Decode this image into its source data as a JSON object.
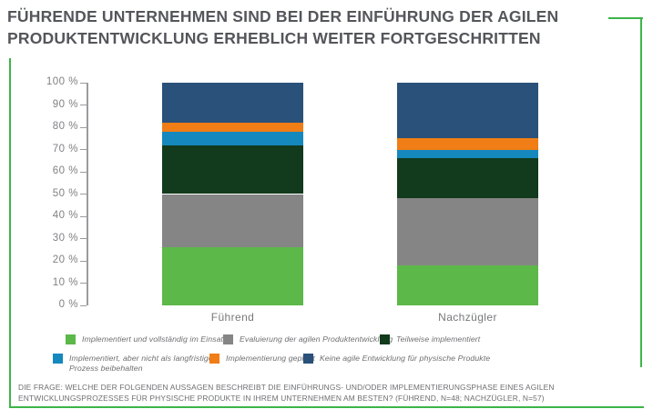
{
  "title": {
    "lines": [
      "FÜHRENDE UNTERNEHMEN SIND BEI DER EINFÜHRUNG DER AGILEN",
      "PRODUKTENTWICKLUNG ERHEBLICH WEITER FORTGESCHRITTEN"
    ]
  },
  "chart_data": {
    "type": "bar",
    "variant": "stacked-100-percent",
    "categories": [
      "Führend",
      "Nachzügler"
    ],
    "series": [
      {
        "name": "Implementiert und vollständig im Einsatz",
        "color": "#5CB848",
        "values": [
          26,
          18
        ]
      },
      {
        "name": "Evaluierung der agilen Produktentwicklung",
        "color": "#858585",
        "values": [
          24,
          30
        ]
      },
      {
        "name": "Teilweise implementiert",
        "color": "#123A1C",
        "values": [
          22,
          18
        ]
      },
      {
        "name": "Implementiert, aber nicht als langfristigen Prozess beibehalten",
        "color": "#1588BE",
        "values": [
          6,
          4
        ]
      },
      {
        "name": "Implementierung geplant",
        "color": "#F07D15",
        "values": [
          4,
          5
        ]
      },
      {
        "name": "Keine agile Entwicklung für physische Produkte",
        "color": "#2A517A",
        "values": [
          18,
          25
        ]
      }
    ],
    "ylim": [
      0,
      100
    ],
    "yticks": [
      "0 %",
      "10 %",
      "20 %",
      "30 %",
      "40 %",
      "50 %",
      "60 %",
      "70 %",
      "80 %",
      "90 %",
      "100 %"
    ],
    "grid": false,
    "legend_position": "bottom"
  },
  "footer": {
    "lines": [
      "DIE FRAGE: WELCHE DER FOLGENDEN AUSSAGEN BESCHREIBT DIE EINFÜHRUNGS- UND/ODER IMPLEMENTIERUNGSPHASE EINES AGILEN",
      "ENTWICKLUNGSPROZESSES FÜR PHYSISCHE PRODUKTE IN IHREM UNTERNEHMEN AM BESTEN? (FÜHREND, N=48; NACHZÜGLER, N=57)"
    ]
  },
  "colors": {
    "accent_green": "#3DB549",
    "title_text": "#55565B",
    "axis_text": "#808184",
    "footer_text": "#6D6E71"
  }
}
